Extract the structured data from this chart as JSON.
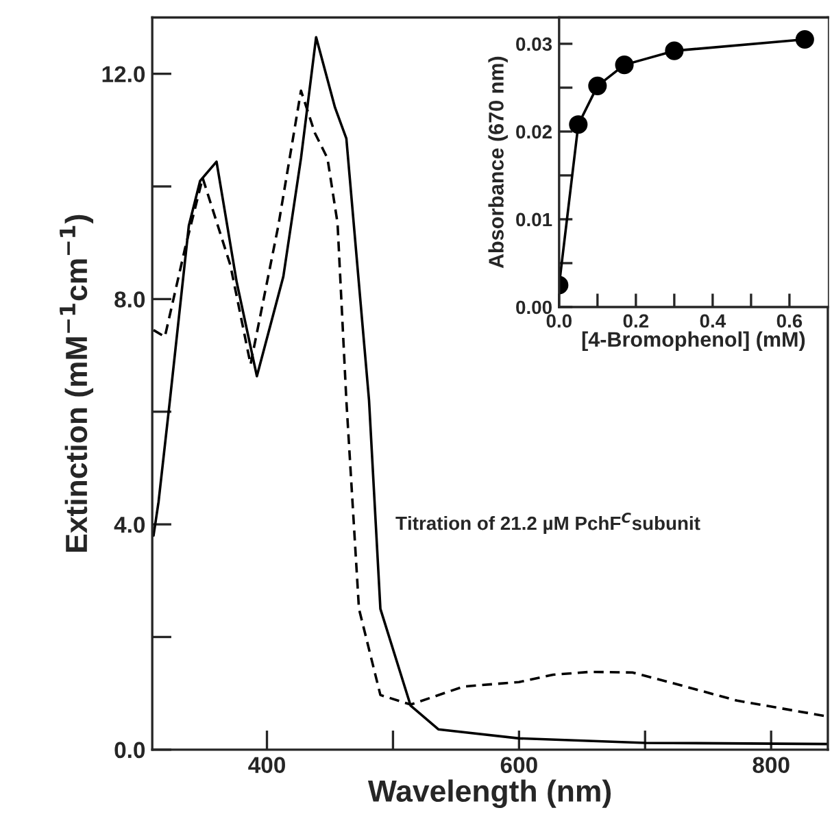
{
  "chart_data": [
    {
      "type": "line",
      "xlabel": "Wavelength (nm)",
      "ylabel": "Extinction (mM$^{−1}$cm$^{−1}$)",
      "annotations": [
        "Titration of 21.2 µM PchF$^{C}$subunit"
      ],
      "series": [
        {
          "color": "#000000",
          "line_style": "solid",
          "x": [
            310,
            314,
            323,
            338,
            347,
            360,
            376,
            392,
            413,
            427,
            439,
            454,
            463,
            481,
            490,
            514,
            536,
            600,
            700,
            845
          ],
          "values": [
            3.8,
            4.4,
            6.2,
            9.3,
            10.1,
            10.44,
            8.3,
            6.63,
            8.4,
            10.5,
            12.65,
            11.4,
            10.85,
            6.2,
            2.5,
            0.78,
            0.36,
            0.2,
            0.12,
            0.1
          ]
        },
        {
          "color": "#000000",
          "line_style": "dashed",
          "x": [
            310,
            319,
            335,
            349,
            371,
            387,
            409,
            427,
            438,
            448,
            456,
            463,
            473,
            490,
            514,
            556,
            600,
            627,
            656,
            690,
            732,
            773,
            842
          ],
          "values": [
            7.45,
            7.33,
            8.9,
            10.15,
            8.6,
            6.84,
            9.3,
            11.7,
            10.95,
            10.5,
            9.35,
            6.2,
            2.5,
            0.97,
            0.8,
            1.12,
            1.2,
            1.33,
            1.38,
            1.37,
            1.12,
            0.87,
            0.6
          ]
        }
      ],
      "xlim": [
        309,
        845
      ],
      "xticks": [
        400,
        {
          "value": 500,
          "label": null
        },
        600,
        {
          "value": 700,
          "label": null
        },
        800
      ],
      "ylim": [
        0,
        13
      ],
      "yticks": [
        {
          "value": 0,
          "label": "0.0"
        },
        {
          "value": 2,
          "label": null
        },
        {
          "value": 4,
          "label": "4.0"
        },
        {
          "value": 6,
          "label": null
        },
        {
          "value": 8,
          "label": "8.0"
        },
        {
          "value": 10,
          "label": null
        },
        {
          "value": 12,
          "label": "12.0"
        }
      ],
      "grid": false,
      "legend": false
    },
    {
      "type": "line",
      "xlabel": "[4-Bromophenol] (mM)",
      "ylabel": "Absorbance (670 nm)",
      "marker": "circle",
      "line_style": "solid",
      "x": [
        0,
        0.05,
        0.1,
        0.17,
        0.3,
        0.64
      ],
      "values": [
        0.0025,
        0.0208,
        0.0252,
        0.0276,
        0.0292,
        0.0305
      ],
      "color": "#000000",
      "xlim": [
        0,
        0.7
      ],
      "xticks": [
        {
          "value": 0,
          "label": "0.0"
        },
        {
          "value": 0.1,
          "label": null
        },
        {
          "value": 0.2,
          "label": "0.2"
        },
        {
          "value": 0.3,
          "label": null
        },
        {
          "value": 0.4,
          "label": "0.4"
        },
        {
          "value": 0.5,
          "label": null
        },
        {
          "value": 0.6,
          "label": "0.6"
        }
      ],
      "ylim": [
        0,
        0.033
      ],
      "yticks": [
        {
          "value": 0,
          "label": "0.00"
        },
        {
          "value": 0.005,
          "label": null
        },
        {
          "value": 0.01,
          "label": "0.01"
        },
        {
          "value": 0.015,
          "label": null
        },
        {
          "value": 0.02,
          "label": "0.02"
        },
        {
          "value": 0.025,
          "label": null
        },
        {
          "value": 0.03,
          "label": "0.03"
        }
      ],
      "grid": false,
      "legend": false
    }
  ]
}
